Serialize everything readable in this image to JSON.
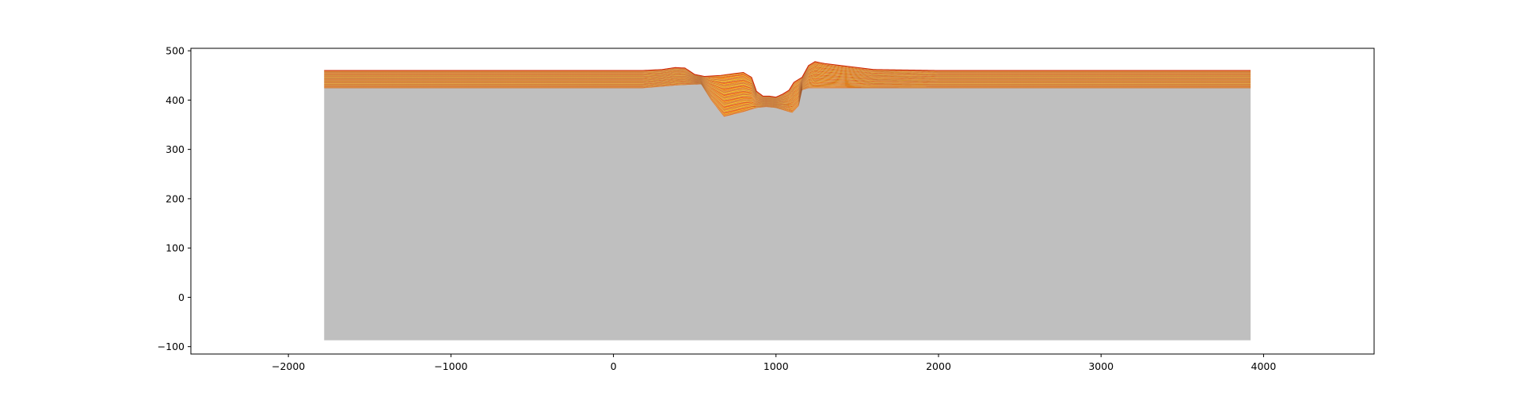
{
  "chart_data": {
    "type": "area",
    "title": "",
    "xlabel": "",
    "ylabel": "",
    "xlim": [
      -2600,
      4680
    ],
    "ylim": [
      -115,
      505
    ],
    "x_ticks": [
      -2000,
      -1000,
      0,
      1000,
      2000,
      3000,
      4000
    ],
    "x_tick_labels": [
      "−2000",
      "−1000",
      "0",
      "1000",
      "2000",
      "3000",
      "4000"
    ],
    "y_ticks": [
      -100,
      0,
      100,
      200,
      300,
      400,
      500
    ],
    "y_tick_labels": [
      "−100",
      "0",
      "100",
      "200",
      "300",
      "400",
      "500"
    ],
    "grid": false,
    "legend": "none",
    "colors": {
      "basement": "#bfbfbf",
      "layer_a": "#e8782e",
      "layer_b": "#f2a03a",
      "layer_c": "#ffd21f",
      "layer_d": "#ff5a10",
      "line_dark": "#7a2a08",
      "top_edge": "#d02000"
    },
    "basement": {
      "x_range": [
        -1780,
        3920
      ],
      "bottom": -87,
      "top_profile": [
        [
          -1780,
          424
        ],
        [
          180,
          424
        ],
        [
          400,
          430
        ],
        [
          540,
          432
        ],
        [
          600,
          400
        ],
        [
          680,
          366
        ],
        [
          800,
          376
        ],
        [
          880,
          384
        ],
        [
          940,
          386
        ],
        [
          1000,
          384
        ],
        [
          1060,
          378
        ],
        [
          1100,
          374
        ],
        [
          1140,
          388
        ],
        [
          1160,
          420
        ],
        [
          1200,
          424
        ],
        [
          3920,
          424
        ]
      ]
    },
    "top_surface": [
      [
        -1780,
        460
      ],
      [
        180,
        460
      ],
      [
        300,
        462
      ],
      [
        380,
        466
      ],
      [
        440,
        465
      ],
      [
        500,
        452
      ],
      [
        560,
        448
      ],
      [
        660,
        450
      ],
      [
        750,
        454
      ],
      [
        800,
        456
      ],
      [
        850,
        446
      ],
      [
        880,
        418
      ],
      [
        920,
        408
      ],
      [
        960,
        408
      ],
      [
        1000,
        406
      ],
      [
        1040,
        412
      ],
      [
        1080,
        420
      ],
      [
        1110,
        436
      ],
      [
        1160,
        446
      ],
      [
        1200,
        470
      ],
      [
        1240,
        478
      ],
      [
        1300,
        474
      ],
      [
        1400,
        470
      ],
      [
        1600,
        462
      ],
      [
        2000,
        460
      ],
      [
        3920,
        460
      ]
    ]
  }
}
